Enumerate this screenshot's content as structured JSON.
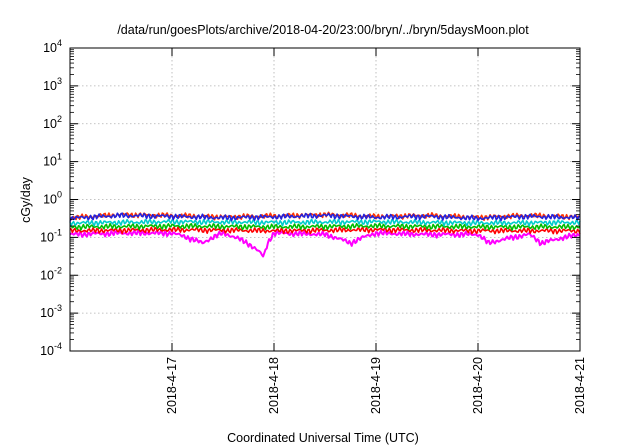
{
  "chart_data": {
    "type": "line",
    "title": "/data/run/goesPlots/archive/2018-04-20/23:00/bryn/../bryn/5daysMoon.plot",
    "xlabel": "Coordinated Universal Time (UTC)",
    "ylabel": "cGy/day",
    "y_scale": "log",
    "ylim_exponents": [
      -4,
      4
    ],
    "y_tick_labels": [
      {
        "base": "10",
        "exp": "-4"
      },
      {
        "base": "10",
        "exp": "-3"
      },
      {
        "base": "10",
        "exp": "-2"
      },
      {
        "base": "10",
        "exp": "-1"
      },
      {
        "base": "10",
        "exp": "0"
      },
      {
        "base": "10",
        "exp": "1"
      },
      {
        "base": "10",
        "exp": "2"
      },
      {
        "base": "10",
        "exp": "3"
      },
      {
        "base": "10",
        "exp": "4"
      }
    ],
    "x_range": [
      "2018-04-16 00:00",
      "2018-04-21 00:00"
    ],
    "x_tick_labels": [
      "2018-4-17",
      "2018-4-18",
      "2018-4-19",
      "2018-4-20",
      "2018-4-21"
    ],
    "grid": true,
    "legend": "none",
    "series": [
      {
        "color": "#ff00ff",
        "x_days": [
          0.0,
          0.5,
          1.0,
          1.3,
          1.5,
          1.9,
          2.0,
          2.5,
          2.75,
          3.0,
          3.5,
          4.0,
          4.1,
          4.5,
          4.62,
          5.0
        ],
        "values": [
          0.12,
          0.13,
          0.13,
          0.07,
          0.13,
          0.03,
          0.13,
          0.12,
          0.07,
          0.13,
          0.12,
          0.12,
          0.07,
          0.12,
          0.07,
          0.12
        ]
      },
      {
        "color": "#ff0000",
        "x_days": [
          0.0,
          1.0,
          2.0,
          3.0,
          4.0,
          5.0
        ],
        "values": [
          0.15,
          0.16,
          0.15,
          0.16,
          0.15,
          0.15
        ]
      },
      {
        "color": "#00bb00",
        "x_days": [
          0.0,
          1.0,
          2.0,
          3.0,
          4.0,
          5.0
        ],
        "values": [
          0.19,
          0.2,
          0.19,
          0.2,
          0.19,
          0.19
        ]
      },
      {
        "color": "#00cccc",
        "x_days": [
          0.0,
          1.0,
          2.0,
          3.0,
          4.0,
          5.0
        ],
        "values": [
          0.24,
          0.26,
          0.25,
          0.26,
          0.24,
          0.25
        ]
      },
      {
        "color": "#ff3300",
        "x_days": [
          0.0,
          0.5,
          1.0,
          1.5,
          2.0,
          2.5,
          3.0,
          3.5,
          4.0,
          4.5,
          5.0
        ],
        "values": [
          0.33,
          0.4,
          0.38,
          0.35,
          0.37,
          0.4,
          0.36,
          0.38,
          0.34,
          0.38,
          0.35
        ]
      },
      {
        "color": "#2222dd",
        "x_days": [
          0.0,
          0.5,
          1.0,
          1.5,
          2.0,
          2.5,
          3.0,
          3.5,
          4.0,
          4.5,
          5.0
        ],
        "values": [
          0.32,
          0.38,
          0.36,
          0.33,
          0.35,
          0.38,
          0.34,
          0.36,
          0.32,
          0.36,
          0.33
        ]
      }
    ]
  }
}
